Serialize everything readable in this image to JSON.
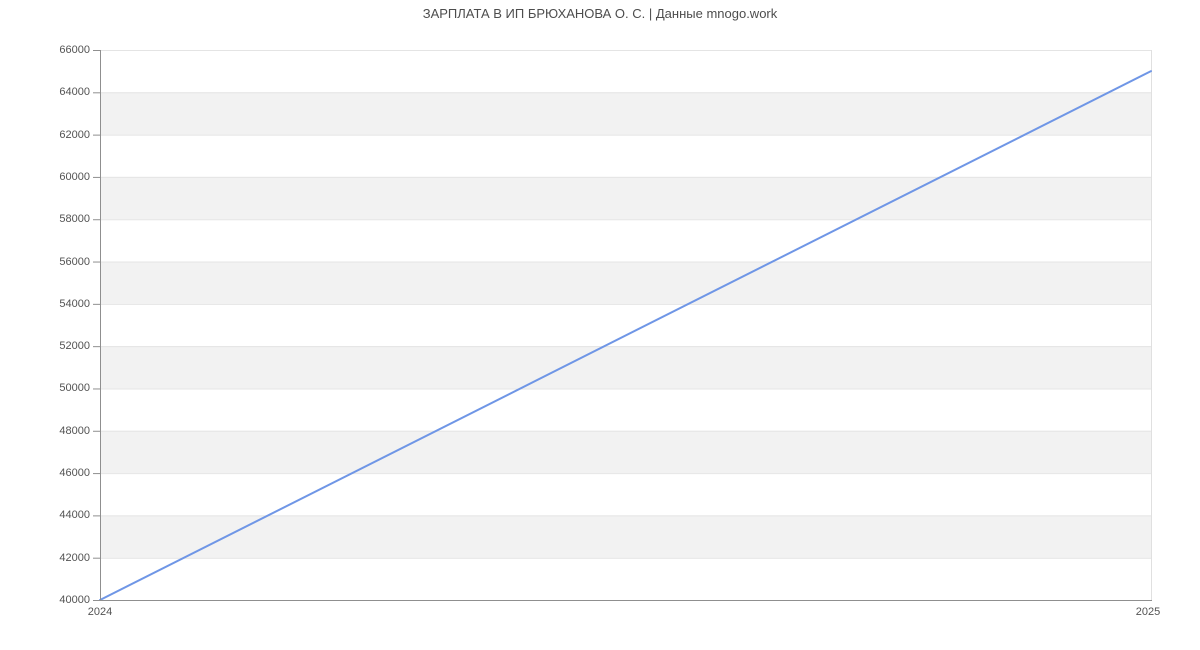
{
  "title": "ЗАРПЛАТА В ИП БРЮХАНОВА О. С. | Данные mnogo.work",
  "colors": {
    "line": "#6f96e6",
    "band": "#f2f2f2",
    "gridline": "#e4e4e4",
    "right_border": "#e0e0e0",
    "axis": "#8f8f8f",
    "text": "#4d4d4d"
  },
  "chart_data": {
    "type": "line",
    "title": "ЗАРПЛАТА В ИП БРЮХАНОВА О. С. | Данные mnogo.work",
    "x": [
      2024,
      2025
    ],
    "values": [
      40000,
      65000
    ],
    "xlabel": "",
    "ylabel": "",
    "xlim": [
      2024,
      2025
    ],
    "ylim": [
      40000,
      66000
    ],
    "yticks": [
      40000,
      42000,
      44000,
      46000,
      48000,
      50000,
      52000,
      54000,
      56000,
      58000,
      60000,
      62000,
      64000,
      66000
    ],
    "xticks": [
      "2024",
      "2025"
    ],
    "grid": "horizontal-bands-alternating",
    "legend": "none",
    "line_width": 2
  }
}
